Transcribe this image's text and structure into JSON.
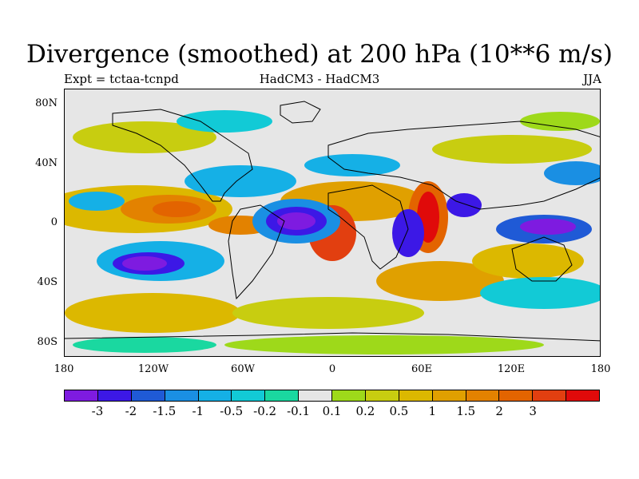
{
  "title": "Divergence (smoothed) at 200 hPa (10**6 m/s)",
  "subtitle_left": "Expt = tctaa-tcnpd",
  "subtitle_center": "HadCM3 - HadCM3",
  "subtitle_right": "JJA",
  "lat_labels": [
    "80N",
    "40N",
    "0",
    "40S",
    "80S"
  ],
  "lon_labels": [
    "180",
    "120W",
    "60W",
    "0",
    "60E",
    "120E",
    "180"
  ],
  "colorbar": {
    "colors": [
      "#7e1be0",
      "#3c18e6",
      "#1f5ad6",
      "#1a8fe3",
      "#15b0e6",
      "#12cad6",
      "#1ad8a0",
      "#e6e6e6",
      "#9ed91a",
      "#c8cd10",
      "#dcb800",
      "#e0a000",
      "#e38200",
      "#e36400",
      "#e23f10",
      "#e00a0a"
    ],
    "labels": [
      "-3",
      "-2",
      "-1.5",
      "-1",
      "-0.5",
      "-0.2",
      "-0.1",
      "0.1",
      "0.2",
      "0.5",
      "1",
      "1.5",
      "2",
      "3"
    ]
  },
  "map_colors": {
    "strong_neg": "#7e1be0",
    "neg2": "#3c18e6",
    "neg15": "#1f5ad6",
    "neg1": "#1a8fe3",
    "neg05": "#15b0e6",
    "neg02": "#12cad6",
    "neg01": "#1ad8a0",
    "zero": "#e6e6e6",
    "pos01": "#9ed91a",
    "pos02": "#c8cd10",
    "pos05": "#dcb800",
    "pos1": "#e0a000",
    "pos15": "#e38200",
    "pos2": "#e36400",
    "pos3": "#e23f10",
    "strong_pos": "#e00a0a"
  }
}
